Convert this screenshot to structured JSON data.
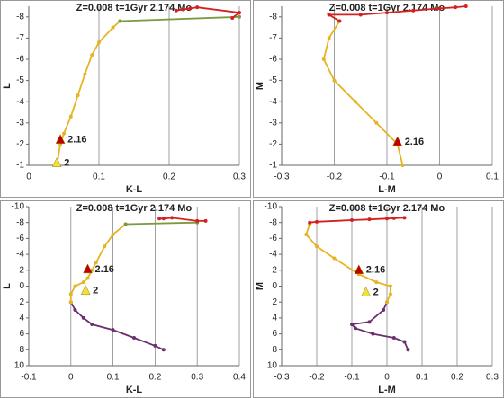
{
  "chart_data": [
    {
      "type": "line",
      "title": "Z=0.008  t=1Gyr  2.174 Mo",
      "xlabel": "K-L",
      "ylabel": "L",
      "xlim": [
        0,
        0.3
      ],
      "xticks": [
        0,
        0.1,
        0.2,
        0.3
      ],
      "ylim": [
        -1,
        -8.5
      ],
      "yticks": [
        -1,
        -2,
        -3,
        -4,
        -5,
        -6,
        -7,
        -8
      ],
      "grid": "x",
      "series": [
        {
          "color": "#e6b422",
          "x": [
            0.04,
            0.045,
            0.05,
            0.06,
            0.07,
            0.08,
            0.09,
            0.1,
            0.12,
            0.13
          ],
          "values": [
            -1,
            -2,
            -2.5,
            -3.3,
            -4.3,
            -5.3,
            -6.2,
            -6.8,
            -7.5,
            -7.8
          ]
        },
        {
          "color": "#7a9a40",
          "x": [
            0.13,
            0.3
          ],
          "values": [
            -7.8,
            -8.0
          ]
        },
        {
          "color": "#d42020",
          "x": [
            0.21,
            0.22,
            0.23,
            0.24,
            0.3,
            0.29
          ],
          "values": [
            -8.3,
            -8.35,
            -8.4,
            -8.45,
            -8.2,
            -7.95
          ]
        }
      ],
      "annotations": [
        {
          "text": "2.16",
          "x": 0.045,
          "y": -2.2,
          "color": "#c00000"
        },
        {
          "text": "2",
          "x": 0.04,
          "y": -1.1,
          "color": "#f0e040"
        }
      ]
    },
    {
      "type": "line",
      "title": "Z=0.008  t=1Gyr  2.174 Mo",
      "xlabel": "L-M",
      "ylabel": "M",
      "xlim": [
        -0.3,
        0.1
      ],
      "xticks": [
        -0.3,
        -0.2,
        -0.1,
        0,
        0.1
      ],
      "ylim": [
        -1,
        -8.5
      ],
      "yticks": [
        -1,
        -2,
        -3,
        -4,
        -5,
        -6,
        -7,
        -8
      ],
      "grid": "x",
      "series": [
        {
          "color": "#e6b422",
          "x": [
            -0.07,
            -0.08,
            -0.12,
            -0.16,
            -0.2,
            -0.22,
            -0.21,
            -0.19
          ],
          "values": [
            -1,
            -2,
            -3,
            -4,
            -5,
            -6,
            -7,
            -7.8
          ]
        },
        {
          "color": "#d42020",
          "x": [
            -0.19,
            -0.21,
            -0.15,
            -0.1,
            -0.05,
            0,
            0.03,
            0.05
          ],
          "values": [
            -7.8,
            -8.1,
            -8.1,
            -8.2,
            -8.3,
            -8.4,
            -8.45,
            -8.5
          ]
        }
      ],
      "annotations": [
        {
          "text": "2.16",
          "x": -0.08,
          "y": -2.1,
          "color": "#c00000"
        }
      ]
    },
    {
      "type": "line",
      "title": "Z=0.008  t=1Gyr  2.174 Mo",
      "xlabel": "K-L",
      "ylabel": "L",
      "xlim": [
        -0.1,
        0.4
      ],
      "xticks": [
        -0.1,
        0,
        0.1,
        0.2,
        0.3,
        0.4
      ],
      "ylim": [
        10,
        -10
      ],
      "yticks": [
        -10,
        -8,
        -6,
        -4,
        -2,
        0,
        2,
        4,
        6,
        8,
        10
      ],
      "grid": "x",
      "series": [
        {
          "color": "#6b2f6f",
          "x": [
            0,
            0.01,
            0.03,
            0.05,
            0.1,
            0.15,
            0.2,
            0.22
          ],
          "values": [
            2,
            3,
            4,
            4.8,
            5.5,
            6.5,
            7.5,
            8
          ]
        },
        {
          "color": "#e6b422",
          "x": [
            0,
            0,
            0.01,
            0.03,
            0.04,
            0.05,
            0.06,
            0.08,
            0.1,
            0.13
          ],
          "values": [
            2,
            1,
            0,
            -0.5,
            -1,
            -2,
            -3,
            -5,
            -6.5,
            -7.8
          ]
        },
        {
          "color": "#7a9a40",
          "x": [
            0.13,
            0.3
          ],
          "values": [
            -7.8,
            -8.0
          ]
        },
        {
          "color": "#d42020",
          "x": [
            0.21,
            0.22,
            0.24,
            0.3,
            0.32
          ],
          "values": [
            -8.5,
            -8.5,
            -8.6,
            -8.2,
            -8.2
          ]
        }
      ],
      "annotations": [
        {
          "text": "2.16",
          "x": 0.04,
          "y": -2.1,
          "color": "#c00000"
        },
        {
          "text": "2",
          "x": 0.035,
          "y": 0.6,
          "color": "#f0e040"
        }
      ]
    },
    {
      "type": "line",
      "title": "Z=0.008  t=1Gyr  2.174 Mo",
      "xlabel": "L-M",
      "ylabel": "M",
      "xlim": [
        -0.3,
        0.3
      ],
      "xticks": [
        -0.3,
        -0.2,
        -0.1,
        0,
        0.1,
        0.2,
        0.3
      ],
      "ylim": [
        10,
        -10
      ],
      "yticks": [
        -10,
        -8,
        -6,
        -4,
        -2,
        0,
        2,
        4,
        6,
        8,
        10
      ],
      "grid": "x",
      "series": [
        {
          "color": "#6b2f6f",
          "x": [
            0,
            -0.01,
            -0.05,
            -0.1,
            -0.09,
            -0.04,
            0.02,
            0.05,
            0.06
          ],
          "values": [
            2,
            3,
            4.5,
            4.8,
            5.3,
            6,
            6.5,
            7,
            8
          ]
        },
        {
          "color": "#e6b422",
          "x": [
            0,
            0.01,
            0.01,
            -0.03,
            -0.08,
            -0.15,
            -0.2,
            -0.23,
            -0.22
          ],
          "values": [
            2,
            1,
            0,
            -0.5,
            -1.5,
            -3.5,
            -5,
            -6.5,
            -7.8
          ]
        },
        {
          "color": "#d42020",
          "x": [
            -0.22,
            -0.2,
            -0.1,
            -0.05,
            0,
            0.02,
            0.05
          ],
          "values": [
            -8,
            -8.1,
            -8.3,
            -8.4,
            -8.5,
            -8.55,
            -8.6
          ]
        }
      ],
      "annotations": [
        {
          "text": "2.16",
          "x": -0.08,
          "y": -2,
          "color": "#c00000"
        },
        {
          "text": "2",
          "x": -0.06,
          "y": 0.8,
          "color": "#f0e040"
        }
      ]
    }
  ]
}
